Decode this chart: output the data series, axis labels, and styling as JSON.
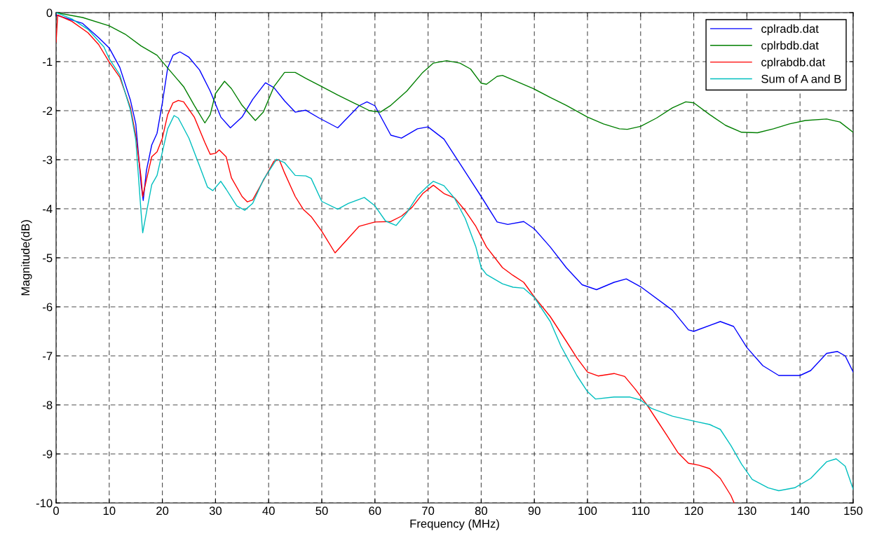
{
  "chart_data": {
    "type": "line",
    "xlabel": "Frequency (MHz)",
    "ylabel": "Magnitude(dB)",
    "xlim": [
      0,
      150
    ],
    "ylim": [
      -10,
      0
    ],
    "xticks": [
      0,
      10,
      20,
      30,
      40,
      50,
      60,
      70,
      80,
      90,
      100,
      110,
      120,
      130,
      140,
      150
    ],
    "yticks": [
      -10,
      -9,
      -8,
      -7,
      -6,
      -5,
      -4,
      -3,
      -2,
      -1,
      0
    ],
    "grid": true,
    "legend": "top right",
    "line_style": "solid",
    "marker": "none",
    "series": [
      {
        "name": "cplradb.dat",
        "color": "#0000ff",
        "x": [
          0,
          5,
          8,
          10,
          12,
          14,
          15,
          16,
          16.4,
          17,
          18,
          19,
          20,
          21,
          22,
          23.3,
          25,
          27,
          29,
          31,
          32.8,
          35,
          37,
          39.4,
          41,
          43,
          45,
          47,
          49.5,
          53,
          57,
          58.5,
          60,
          63,
          65,
          68,
          70,
          73,
          76,
          80,
          83,
          85,
          88,
          90,
          93,
          96,
          99,
          101.7,
          105,
          107.3,
          110,
          116,
          119,
          120,
          125,
          127.5,
          130,
          133,
          136,
          140,
          142,
          145,
          147,
          148.5,
          150
        ],
        "values": [
          -0.05,
          -0.22,
          -0.51,
          -0.72,
          -1.12,
          -1.79,
          -2.27,
          -3.5,
          -3.83,
          -3.22,
          -2.7,
          -2.46,
          -1.84,
          -1.13,
          -0.87,
          -0.8,
          -0.91,
          -1.17,
          -1.6,
          -2.13,
          -2.35,
          -2.13,
          -1.77,
          -1.43,
          -1.53,
          -1.8,
          -2.03,
          -1.99,
          -2.15,
          -2.35,
          -1.9,
          -1.82,
          -1.9,
          -2.5,
          -2.56,
          -2.37,
          -2.33,
          -2.58,
          -3.08,
          -3.75,
          -4.27,
          -4.32,
          -4.26,
          -4.41,
          -4.78,
          -5.2,
          -5.55,
          -5.65,
          -5.5,
          -5.43,
          -5.59,
          -6.07,
          -6.47,
          -6.5,
          -6.3,
          -6.4,
          -6.83,
          -7.2,
          -7.4,
          -7.4,
          -7.3,
          -6.95,
          -6.91,
          -7.0,
          -7.33
        ]
      },
      {
        "name": "cplrbdb.dat",
        "color": "#007f00",
        "x": [
          0,
          5,
          10,
          13,
          16,
          19,
          21,
          24,
          26,
          28,
          29,
          30,
          31.7,
          33,
          35,
          37.5,
          39,
          41,
          43,
          45,
          47,
          50,
          53,
          56,
          59,
          61,
          63,
          66,
          69,
          71,
          73.5,
          76,
          78,
          80,
          81,
          83,
          84,
          87,
          90,
          93,
          96,
          100,
          103,
          106,
          107.5,
          110,
          113,
          116,
          118.5,
          120,
          123,
          126,
          129,
          132,
          135,
          138,
          141,
          145,
          147.5,
          150
        ],
        "values": [
          0,
          -0.1,
          -0.27,
          -0.44,
          -0.68,
          -0.87,
          -1.13,
          -1.51,
          -1.89,
          -2.25,
          -2.08,
          -1.65,
          -1.4,
          -1.55,
          -1.89,
          -2.2,
          -2.03,
          -1.51,
          -1.22,
          -1.22,
          -1.34,
          -1.51,
          -1.68,
          -1.84,
          -2.0,
          -2.03,
          -1.89,
          -1.6,
          -1.22,
          -1.03,
          -0.98,
          -1.03,
          -1.15,
          -1.44,
          -1.46,
          -1.3,
          -1.28,
          -1.42,
          -1.56,
          -1.73,
          -1.89,
          -2.13,
          -2.27,
          -2.37,
          -2.38,
          -2.32,
          -2.15,
          -1.94,
          -1.82,
          -1.84,
          -2.08,
          -2.3,
          -2.44,
          -2.45,
          -2.37,
          -2.27,
          -2.2,
          -2.17,
          -2.23,
          -2.44
        ]
      },
      {
        "name": "cplrabdb.dat",
        "color": "#ff0000",
        "x": [
          0,
          0.3,
          3,
          6,
          8,
          10,
          12,
          14,
          15,
          16,
          16.3,
          17,
          18,
          19,
          20,
          21,
          22,
          23,
          24,
          26,
          28,
          29,
          30,
          30.7,
          32,
          33,
          35,
          36,
          37,
          41,
          42,
          43,
          45,
          46.5,
          48,
          50,
          52.5,
          55,
          57,
          60,
          63,
          65,
          67,
          69,
          71,
          73,
          75,
          77,
          79,
          81,
          84,
          86,
          88,
          90,
          93,
          96,
          98,
          100,
          102,
          105,
          107,
          109,
          111,
          113,
          115,
          117,
          119,
          121,
          123,
          125,
          127,
          127.6
        ],
        "values": [
          -0.6,
          -0.05,
          -0.18,
          -0.41,
          -0.65,
          -1.01,
          -1.32,
          -1.94,
          -2.51,
          -3.37,
          -3.75,
          -3.41,
          -2.94,
          -2.84,
          -2.56,
          -2.08,
          -1.84,
          -1.79,
          -1.82,
          -2.13,
          -2.65,
          -2.89,
          -2.87,
          -2.8,
          -2.94,
          -3.37,
          -3.75,
          -3.86,
          -3.82,
          -3.03,
          -3.0,
          -3.27,
          -3.75,
          -4.01,
          -4.16,
          -4.46,
          -4.9,
          -4.6,
          -4.36,
          -4.27,
          -4.26,
          -4.15,
          -3.97,
          -3.69,
          -3.52,
          -3.69,
          -3.78,
          -4.04,
          -4.36,
          -4.78,
          -5.2,
          -5.36,
          -5.5,
          -5.8,
          -6.2,
          -6.7,
          -7.04,
          -7.33,
          -7.41,
          -7.36,
          -7.42,
          -7.68,
          -7.97,
          -8.3,
          -8.63,
          -8.97,
          -9.19,
          -9.23,
          -9.3,
          -9.5,
          -9.85,
          -10
        ]
      },
      {
        "name": "Sum of A and B",
        "color": "#00bfbf",
        "x": [
          0,
          3,
          6,
          9,
          10,
          12,
          14,
          15,
          16,
          16.3,
          17,
          18,
          19,
          20,
          21,
          22.2,
          23,
          25,
          27,
          28.5,
          29.5,
          31,
          32,
          34,
          35.5,
          37,
          39,
          41.5,
          43,
          45,
          47,
          48,
          50,
          53,
          55,
          58,
          60,
          62,
          64,
          66,
          68,
          70,
          71,
          73,
          75,
          77,
          79,
          80,
          81,
          84,
          86,
          88,
          90,
          93,
          95,
          97,
          98,
          100,
          101.5,
          105,
          108,
          110,
          112,
          116,
          120,
          123,
          125,
          127,
          129,
          131,
          134,
          136,
          139,
          142,
          145,
          146.8,
          148.5,
          150
        ],
        "values": [
          0,
          -0.13,
          -0.34,
          -0.7,
          -0.94,
          -1.27,
          -1.99,
          -2.6,
          -4.08,
          -4.49,
          -4.08,
          -3.51,
          -3.32,
          -2.84,
          -2.37,
          -2.1,
          -2.15,
          -2.56,
          -3.13,
          -3.56,
          -3.63,
          -3.44,
          -3.6,
          -3.94,
          -4.03,
          -3.89,
          -3.41,
          -2.99,
          -3.06,
          -3.32,
          -3.33,
          -3.38,
          -3.85,
          -4.01,
          -3.89,
          -3.77,
          -3.94,
          -4.25,
          -4.34,
          -4.08,
          -3.74,
          -3.53,
          -3.44,
          -3.53,
          -3.79,
          -4.2,
          -4.78,
          -5.2,
          -5.34,
          -5.53,
          -5.6,
          -5.62,
          -5.81,
          -6.3,
          -6.8,
          -7.2,
          -7.4,
          -7.73,
          -7.88,
          -7.84,
          -7.84,
          -7.9,
          -8.07,
          -8.23,
          -8.33,
          -8.4,
          -8.5,
          -8.83,
          -9.21,
          -9.52,
          -9.69,
          -9.75,
          -9.69,
          -9.5,
          -9.16,
          -9.1,
          -9.25,
          -9.72
        ]
      }
    ]
  }
}
